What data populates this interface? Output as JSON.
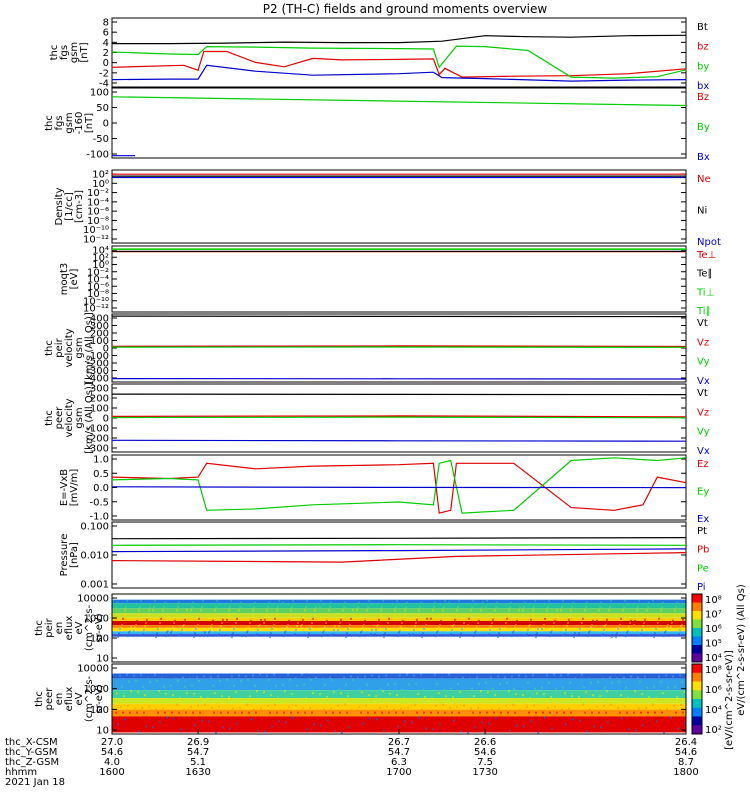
{
  "title": "P2 (TH-C) fields and ground moments overview",
  "colors": {
    "black": "#000000",
    "red": "#e00000",
    "green": "#00cc00",
    "blue": "#0000cc"
  },
  "chart_data": [
    {
      "type": "line",
      "ylabel": [
        "thc",
        "fgs",
        "gsm",
        "[nT]"
      ],
      "yticks": [
        "8",
        "6",
        "4",
        "2",
        "0",
        "-2",
        "-4"
      ],
      "ylim": [
        -5,
        9
      ],
      "legend": [
        {
          "label": "Bt",
          "color": "black"
        },
        {
          "label": "bz",
          "color": "red"
        },
        {
          "label": "by",
          "color": "green"
        },
        {
          "label": "bx",
          "color": "blue"
        }
      ],
      "series": [
        {
          "name": "Bt",
          "color": "black",
          "x": [
            1600,
            1620,
            1640,
            1660,
            1680,
            1700,
            1715,
            1730,
            1745,
            1760,
            1780,
            1800
          ],
          "y": [
            3.8,
            3.8,
            3.9,
            4.1,
            4.0,
            4.0,
            4.3,
            5.4,
            5.2,
            5.1,
            5.4,
            5.5
          ]
        },
        {
          "name": "bz",
          "color": "red",
          "x": [
            1600,
            1625,
            1630,
            1632,
            1640,
            1650,
            1660,
            1670,
            1680,
            1700,
            1712,
            1714,
            1716,
            1722,
            1740,
            1760,
            1780,
            1800
          ],
          "y": [
            -1.0,
            -0.6,
            -1.6,
            2.2,
            2.2,
            0.0,
            -0.9,
            0.8,
            0.5,
            0.6,
            0.7,
            -2.5,
            -1.2,
            -3.0,
            -2.8,
            -2.7,
            -2.3,
            -1.3
          ]
        },
        {
          "name": "by",
          "color": "green",
          "x": [
            1600,
            1620,
            1630,
            1633,
            1650,
            1670,
            1700,
            1712,
            1714,
            1720,
            1730,
            1745,
            1760,
            1775,
            1790,
            1800
          ],
          "y": [
            2.1,
            1.7,
            1.6,
            3.2,
            3.1,
            2.9,
            2.8,
            2.7,
            -1.0,
            3.3,
            3.2,
            2.4,
            -3.0,
            -3.2,
            -2.9,
            -1.5
          ]
        },
        {
          "name": "bx",
          "color": "blue",
          "x": [
            1600,
            1620,
            1630,
            1633,
            1650,
            1670,
            1700,
            1712,
            1715,
            1730,
            1760,
            1780,
            1800
          ],
          "y": [
            -3.5,
            -3.4,
            -3.4,
            -0.6,
            -1.8,
            -2.6,
            -2.3,
            -2.0,
            -3.1,
            -3.3,
            -3.8,
            -3.6,
            -3.5
          ]
        }
      ]
    },
    {
      "type": "line",
      "ylabel": [
        "thc",
        "fgs",
        "gsm",
        "-160",
        "[nT]"
      ],
      "yticks": [
        "100",
        "50",
        "0",
        "-50",
        "-100"
      ],
      "ylim": [
        -130,
        110
      ],
      "legend": [
        {
          "label": "Bz",
          "color": "red"
        },
        {
          "label": "By",
          "color": "green"
        },
        {
          "label": "Bx",
          "color": "blue"
        }
      ],
      "series": [
        {
          "name": "By",
          "color": "green",
          "x": [
            1600,
            1800
          ],
          "y": [
            80,
            50
          ]
        },
        {
          "name": "Bx",
          "color": "blue",
          "x": [
            1600,
            1608
          ],
          "y": [
            -122,
            -122
          ]
        }
      ]
    },
    {
      "type": "line",
      "ylabel": [
        "Density",
        "[1/cc]",
        "[cm-3]"
      ],
      "yticks": [
        "10²",
        "10⁰",
        "10⁻²",
        "10⁻⁴",
        "10⁻⁶",
        "10⁻⁸",
        "10⁻¹⁰",
        "10⁻¹²"
      ],
      "ylim": [
        -13,
        2.5
      ],
      "legend": [
        {
          "label": "Ne",
          "color": "red"
        },
        {
          "label": "Ni",
          "color": "black"
        },
        {
          "label": "Npot",
          "color": "blue"
        }
      ],
      "series": [
        {
          "name": "Ne",
          "color": "red",
          "x": [
            1600,
            1800
          ],
          "y": [
            1.6,
            1.6
          ]
        },
        {
          "name": "Ni",
          "color": "black",
          "x": [
            1600,
            1800
          ],
          "y": [
            1.2,
            1.2
          ]
        },
        {
          "name": "Npot",
          "color": "blue",
          "x": [
            1600,
            1800
          ],
          "y": [
            0.9,
            0.9
          ]
        }
      ]
    },
    {
      "type": "line",
      "ylabel": [
        "moqt3",
        "[eV]"
      ],
      "yticks": [
        "10⁴",
        "10²",
        "10⁰",
        "10⁻²",
        "10⁻⁴",
        "10⁻⁶",
        "10⁻⁸",
        "10⁻¹⁰",
        "10⁻¹²"
      ],
      "ylim": [
        -13,
        4.5
      ],
      "legend": [
        {
          "label": "Te⊥",
          "color": "red"
        },
        {
          "label": "Te∥",
          "color": "black"
        },
        {
          "label": "Ti⊥",
          "color": "green"
        },
        {
          "label": "Ti∥",
          "color": "green"
        }
      ],
      "series": [
        {
          "name": "Te⊥",
          "color": "red",
          "x": [
            1600,
            1800
          ],
          "y": [
            3.0,
            3.0
          ]
        },
        {
          "name": "Te∥",
          "color": "black",
          "x": [
            1600,
            1800
          ],
          "y": [
            3.1,
            3.1
          ]
        },
        {
          "name": "Ti⊥",
          "color": "green",
          "x": [
            1600,
            1800
          ],
          "y": [
            3.6,
            3.6
          ]
        },
        {
          "name": "Ti∥",
          "color": "green",
          "x": [
            1600,
            1800
          ],
          "y": [
            3.7,
            3.7
          ]
        }
      ]
    },
    {
      "type": "line",
      "ylabel": [
        "thc",
        "peir",
        "velocity",
        "gsm",
        "[km/s (All Qs)]"
      ],
      "yticks": [
        "400",
        "300",
        "200",
        "100",
        "0",
        "-100",
        "-200",
        "-300",
        "-400"
      ],
      "ylim": [
        -400,
        400
      ],
      "legend": [
        {
          "label": "Vt",
          "color": "black"
        },
        {
          "label": "Vz",
          "color": "red"
        },
        {
          "label": "Vy",
          "color": "green"
        },
        {
          "label": "Vx",
          "color": "blue"
        }
      ],
      "series": [
        {
          "name": "Vt",
          "color": "black",
          "x": [
            1600,
            1700,
            1800
          ],
          "y": [
            375,
            372,
            370
          ]
        },
        {
          "name": "Vz",
          "color": "red",
          "x": [
            1600,
            1700,
            1800
          ],
          "y": [
            20,
            25,
            18
          ]
        },
        {
          "name": "Vy",
          "color": "green",
          "x": [
            1600,
            1700,
            1800
          ],
          "y": [
            10,
            12,
            8
          ]
        },
        {
          "name": "Vx",
          "color": "blue",
          "x": [
            1600,
            1700,
            1800
          ],
          "y": [
            -360,
            -362,
            -365
          ]
        }
      ]
    },
    {
      "type": "line",
      "ylabel": [
        "thc",
        "peer",
        "velocity",
        "gsm",
        "[km/s (All Qs)]"
      ],
      "yticks": [
        "300",
        "200",
        "100",
        "0",
        "-100",
        "-200",
        "-300"
      ],
      "ylim": [
        -320,
        320
      ],
      "legend": [
        {
          "label": "Vt",
          "color": "black"
        },
        {
          "label": "Vz",
          "color": "red"
        },
        {
          "label": "Vy",
          "color": "green"
        },
        {
          "label": "Vx",
          "color": "blue"
        }
      ],
      "series": [
        {
          "name": "Vt",
          "color": "black",
          "x": [
            1600,
            1700,
            1800
          ],
          "y": [
            225,
            222,
            220
          ]
        },
        {
          "name": "Vz",
          "color": "red",
          "x": [
            1600,
            1700,
            1800
          ],
          "y": [
            15,
            20,
            10
          ]
        },
        {
          "name": "Vy",
          "color": "green",
          "x": [
            1600,
            1700,
            1800
          ],
          "y": [
            5,
            8,
            2
          ]
        },
        {
          "name": "Vx",
          "color": "blue",
          "x": [
            1600,
            1700,
            1800
          ],
          "y": [
            -210,
            -215,
            -218
          ]
        }
      ]
    },
    {
      "type": "line",
      "ylabel": [
        "E=-VxB",
        "[mV/m]"
      ],
      "yticks": [
        "1.0",
        "0.5",
        "0.0",
        "-0.5",
        "-1.0"
      ],
      "ylim": [
        -1.15,
        1.2
      ],
      "legend": [
        {
          "label": "Ez",
          "color": "red"
        },
        {
          "label": "Ey",
          "color": "green"
        },
        {
          "label": "Ex",
          "color": "blue"
        }
      ],
      "series": [
        {
          "name": "Ez",
          "color": "red",
          "x": [
            1600,
            1620,
            1630,
            1633,
            1650,
            1670,
            1700,
            1712,
            1714,
            1718,
            1720,
            1740,
            1760,
            1775,
            1785,
            1790,
            1800
          ],
          "y": [
            0.4,
            0.35,
            0.4,
            0.9,
            0.7,
            0.8,
            0.85,
            0.9,
            -0.9,
            -0.8,
            0.9,
            0.9,
            -0.7,
            -0.8,
            -0.6,
            0.4,
            0.2
          ]
        },
        {
          "name": "Ey",
          "color": "green",
          "x": [
            1600,
            1620,
            1630,
            1633,
            1650,
            1670,
            1700,
            1712,
            1714,
            1718,
            1722,
            1740,
            1760,
            1775,
            1790,
            1800
          ],
          "y": [
            0.3,
            0.35,
            0.3,
            -0.8,
            -0.75,
            -0.6,
            -0.5,
            -0.6,
            0.9,
            1.0,
            -0.9,
            -0.8,
            1.0,
            1.1,
            1.0,
            1.1
          ]
        },
        {
          "name": "Ex",
          "color": "blue",
          "x": [
            1600,
            1700,
            1800
          ],
          "y": [
            0.05,
            0.03,
            0.02
          ]
        }
      ]
    },
    {
      "type": "line",
      "ylabel": [
        "Pressure",
        "[nPa]"
      ],
      "yticks": [
        "0.100",
        "0.010",
        "0.001"
      ],
      "ylim": [
        -3.1,
        -0.9
      ],
      "legend": [
        {
          "label": "Pt",
          "color": "black"
        },
        {
          "label": "Pb",
          "color": "red"
        },
        {
          "label": "Pe",
          "color": "green"
        },
        {
          "label": "Pi",
          "color": "blue"
        }
      ],
      "series": [
        {
          "name": "Pt",
          "color": "black",
          "x": [
            1600,
            1700,
            1800
          ],
          "y": [
            0.035,
            0.036,
            0.038
          ]
        },
        {
          "name": "Pe",
          "color": "green",
          "x": [
            1600,
            1700,
            1800
          ],
          "y": [
            0.021,
            0.022,
            0.021
          ]
        },
        {
          "name": "Pi",
          "color": "blue",
          "x": [
            1600,
            1700,
            1800
          ],
          "y": [
            0.013,
            0.014,
            0.016
          ]
        },
        {
          "name": "Pb",
          "color": "red",
          "x": [
            1600,
            1680,
            1720,
            1800
          ],
          "y": [
            0.0065,
            0.0058,
            0.009,
            0.012
          ]
        }
      ]
    },
    {
      "type": "heatmap",
      "ylabel": [
        "thc",
        "peir",
        "en",
        "eflux",
        "eV",
        "(cm^2-s-",
        "sr-eV)"
      ],
      "yticks": [
        "10000",
        "1000",
        "100",
        "10"
      ],
      "ylim": [
        5,
        20000
      ],
      "colorbar_ticks": [
        "10⁸",
        "10⁷",
        "10⁶",
        "10⁵",
        "10⁴"
      ],
      "bands": [
        {
          "range": [
            6500,
            10000
          ],
          "color": "#1f78e0"
        },
        {
          "range": [
            3500,
            6500
          ],
          "color": "#20c0a0"
        },
        {
          "range": [
            1900,
            3500
          ],
          "color": "#60d060"
        },
        {
          "range": [
            1100,
            1900
          ],
          "color": "#c8e020"
        },
        {
          "range": [
            750,
            1100
          ],
          "color": "#ffd000"
        },
        {
          "range": [
            450,
            750
          ],
          "color": "#d00000"
        },
        {
          "range": [
            320,
            450
          ],
          "color": "#ff8000"
        },
        {
          "range": [
            210,
            320
          ],
          "color": "#ffe000"
        },
        {
          "range": [
            150,
            210
          ],
          "color": "#30b8ff"
        },
        {
          "range": [
            110,
            150
          ],
          "color": "#3050d0"
        }
      ]
    },
    {
      "type": "heatmap",
      "ylabel": [
        "thc",
        "peer",
        "en",
        "eflux",
        "eV",
        "(cm^2-s-",
        "sr-eV)"
      ],
      "yticks": [
        "10000",
        "1000",
        "100",
        "10"
      ],
      "ylim": [
        5,
        20000
      ],
      "colorbar_ticks": [
        "10⁸",
        "10⁶",
        "10⁴",
        "10²"
      ],
      "bands": [
        {
          "range": [
            3500,
            6500
          ],
          "color": "#2860d8"
        },
        {
          "range": [
            900,
            3500
          ],
          "color": "#30a0e8"
        },
        {
          "range": [
            350,
            900
          ],
          "color": "#40d0a0"
        },
        {
          "range": [
            180,
            350
          ],
          "color": "#c8e820"
        },
        {
          "range": [
            90,
            180
          ],
          "color": "#ffd000"
        },
        {
          "range": [
            40,
            90
          ],
          "color": "#ff9000"
        },
        {
          "range": [
            6,
            40
          ],
          "color": "#e00000"
        }
      ]
    }
  ],
  "colorbar_label": "[eV/(cm^2-s-sr-eV)]",
  "colorbar_label2": "eV/(cm^2-s-sr-eV) (All Qs)",
  "xaxis": {
    "row_labels": [
      "thc_X-CSM",
      "thc_Y-GSM",
      "thc_Z-GSM",
      "hhmm",
      "2021 Jan 18"
    ],
    "ticks": [
      {
        "x": 1600,
        "rows": [
          "27.0",
          "54.6",
          "4.0",
          "1600"
        ]
      },
      {
        "x": 1630,
        "rows": [
          "26.9",
          "54.7",
          "5.1",
          "1630"
        ]
      },
      {
        "x": 1700,
        "rows": [
          "26.7",
          "54.7",
          "6.3",
          "1700"
        ]
      },
      {
        "x": 1730,
        "rows": [
          "26.6",
          "54.6",
          "7.5",
          "1730"
        ]
      },
      {
        "x": 1800,
        "rows": [
          "26.4",
          "54.6",
          "8.7",
          "1800"
        ]
      }
    ]
  }
}
